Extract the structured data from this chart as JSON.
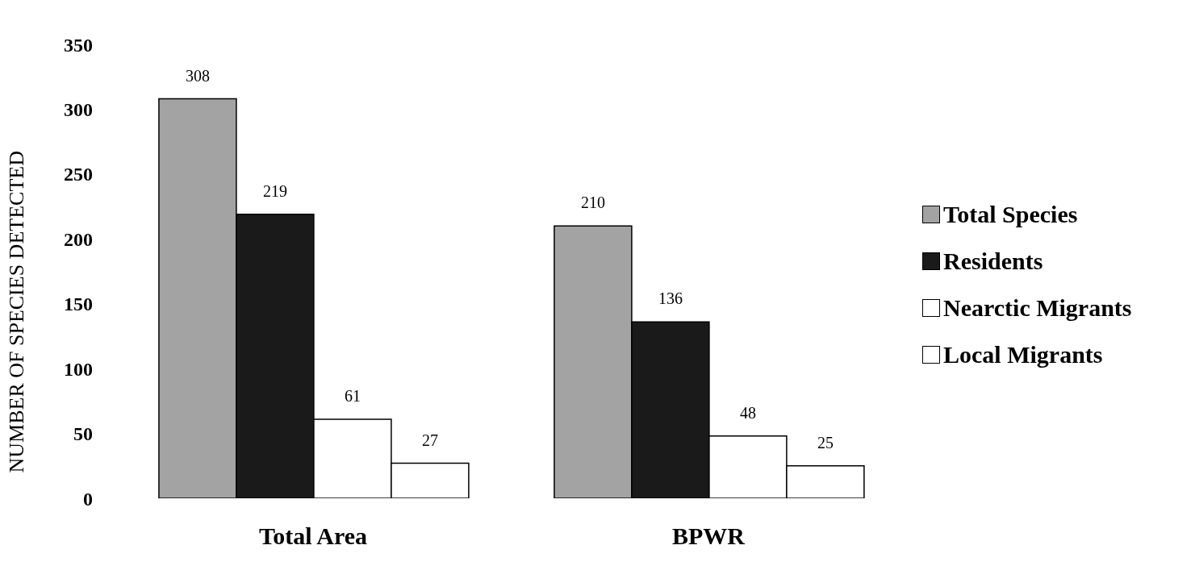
{
  "chart_data": {
    "type": "bar",
    "ylabel": "NUMBER OF SPECIES DETECTED",
    "categories": [
      "Total Area",
      "BPWR"
    ],
    "series": [
      {
        "name": "Total Species",
        "color": "#a3a3a3",
        "values": [
          308,
          210
        ]
      },
      {
        "name": "Residents",
        "color": "#1a1a1a",
        "values": [
          219,
          136
        ]
      },
      {
        "name": "Nearctic Migrants",
        "color": "#ffffff",
        "values": [
          61,
          48
        ]
      },
      {
        "name": "Local Migrants",
        "color": "#ffffff",
        "values": [
          27,
          25
        ]
      }
    ],
    "ylim": [
      0,
      350
    ],
    "yticks": [
      0,
      50,
      100,
      150,
      200,
      250,
      300,
      350
    ],
    "data_labels": true,
    "grid": false,
    "legend": "right"
  }
}
